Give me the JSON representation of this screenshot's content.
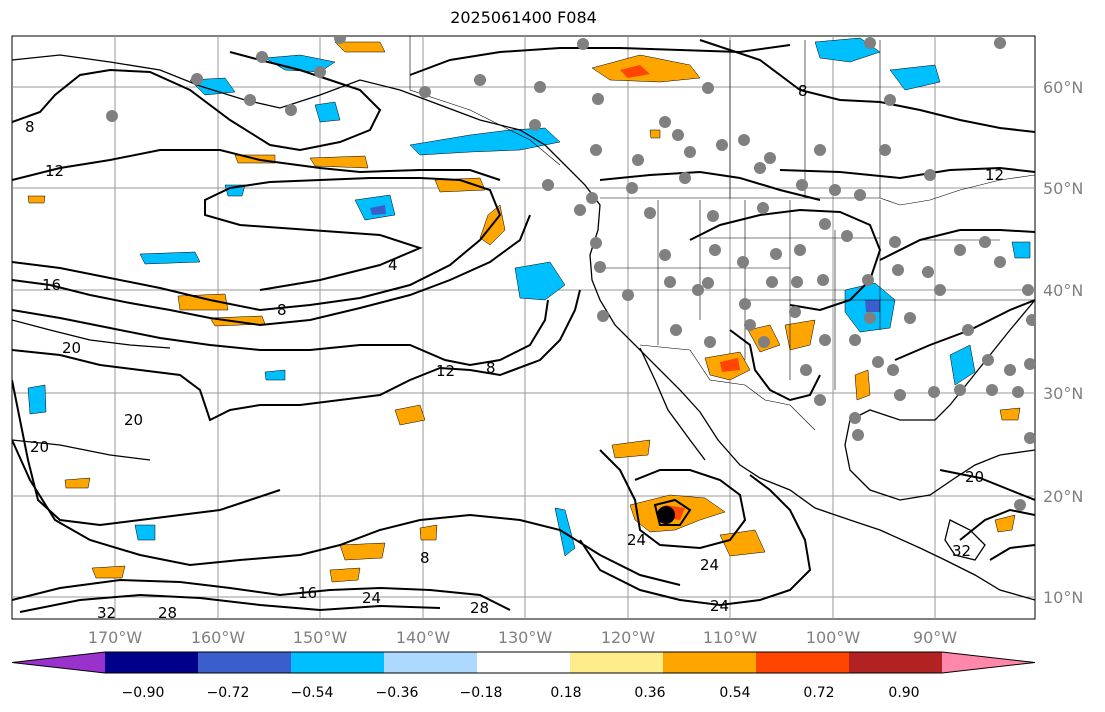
{
  "title": "2025061400 F084",
  "lon_labels": [
    "170°W",
    "160°W",
    "150°W",
    "140°W",
    "130°W",
    "120°W",
    "110°W",
    "100°W",
    "90°W"
  ],
  "lat_labels": [
    "60°N",
    "50°N",
    "40°N",
    "30°N",
    "20°N",
    "10°N"
  ],
  "colorbar": {
    "labels": [
      "−0.90",
      "−0.72",
      "−0.54",
      "−0.36",
      "−0.18",
      "0.18",
      "0.36",
      "0.54",
      "0.72",
      "0.90"
    ],
    "colors": [
      "#9932cc",
      "#00008b",
      "#3a5fcd",
      "#00bfff",
      "#add8ff",
      "#ffffff",
      "#ffec8b",
      "#ffa500",
      "#ff4500",
      "#b22222",
      "#ff88aa"
    ]
  },
  "contour_labels": [
    "4",
    "8",
    "8",
    "8",
    "8",
    "12",
    "12",
    "16",
    "16",
    "20",
    "20",
    "20",
    "20",
    "24",
    "24",
    "24",
    "24",
    "28",
    "28",
    "32",
    "32",
    "8",
    "12"
  ]
}
